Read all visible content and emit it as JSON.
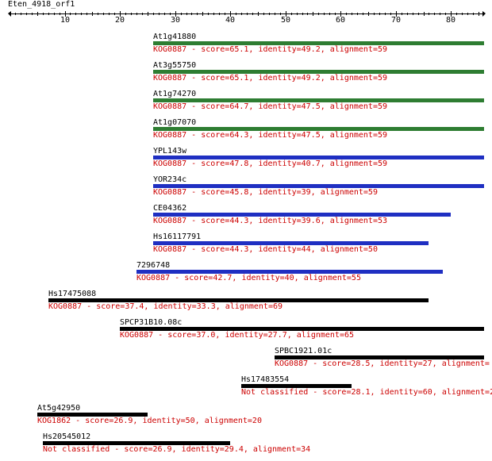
{
  "title": "Eten_4918_orf1",
  "axis": {
    "min": 0,
    "max": 86,
    "labels": [
      10,
      20,
      30,
      40,
      50,
      60,
      70,
      80
    ]
  },
  "colors": {
    "plant": "#2e7d32",
    "fungal": "#1f2fc2",
    "black": "#000000",
    "desc": "#cc0000"
  },
  "hits": [
    {
      "name": "At1g41880",
      "start": 26,
      "end": 86,
      "color": "#2e7d32",
      "desc": "KOG0887 - score=65.1, identity=49.2, alignment=59"
    },
    {
      "name": "At3g55750",
      "start": 26,
      "end": 86,
      "color": "#2e7d32",
      "desc": "KOG0887 - score=65.1, identity=49.2, alignment=59"
    },
    {
      "name": "At1g74270",
      "start": 26,
      "end": 86,
      "color": "#2e7d32",
      "desc": "KOG0887 - score=64.7, identity=47.5, alignment=59"
    },
    {
      "name": "At1g07070",
      "start": 26,
      "end": 86,
      "color": "#2e7d32",
      "desc": "KOG0887 - score=64.3, identity=47.5, alignment=59"
    },
    {
      "name": "YPL143w",
      "start": 26,
      "end": 86,
      "color": "#1f2fc2",
      "desc": "KOG0887 - score=47.8, identity=40.7, alignment=59"
    },
    {
      "name": "YOR234c",
      "start": 26,
      "end": 86,
      "color": "#1f2fc2",
      "desc": "KOG0887 - score=45.8, identity=39, alignment=59"
    },
    {
      "name": "CE04362",
      "start": 26,
      "end": 80,
      "color": "#1f2fc2",
      "desc": "KOG0887 - score=44.3, identity=39.6, alignment=53"
    },
    {
      "name": "Hs16117791",
      "start": 26,
      "end": 76,
      "color": "#1f2fc2",
      "desc": "KOG0887 - score=44.3, identity=44, alignment=50"
    },
    {
      "name": "7296748",
      "start": 23,
      "end": 78.5,
      "color": "#1f2fc2",
      "desc": "KOG0887 - score=42.7, identity=40, alignment=55"
    },
    {
      "name": "Hs17475088",
      "start": 7,
      "end": 76,
      "color": "#000000",
      "desc": "KOG0887 - score=37.4, identity=33.3, alignment=69"
    },
    {
      "name": "SPCP31B10.08c",
      "start": 20,
      "end": 86,
      "color": "#000000",
      "desc": "KOG0887 - score=37.0, identity=27.7, alignment=65"
    },
    {
      "name": "SPBC1921.01c",
      "start": 48,
      "end": 86,
      "color": "#000000",
      "desc": "KOG0887 - score=28.5, identity=27, alignment="
    },
    {
      "name": "Hs17483554",
      "start": 42,
      "end": 62,
      "color": "#000000",
      "desc": "Not classified - score=28.1, identity=60, alignment=2"
    },
    {
      "name": "At5g42950",
      "start": 5,
      "end": 25,
      "color": "#000000",
      "desc": "KOG1862 - score=26.9, identity=50, alignment=20"
    },
    {
      "name": "Hs20545012",
      "start": 6,
      "end": 40,
      "color": "#000000",
      "desc": "Not classified - score=26.9, identity=29.4, alignment=34"
    }
  ]
}
